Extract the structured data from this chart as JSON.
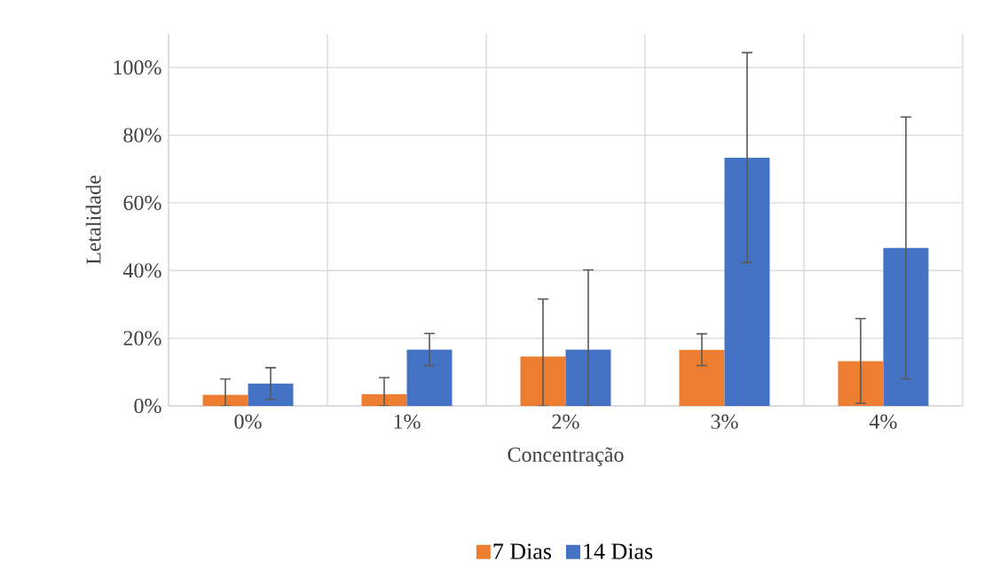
{
  "chart_data": {
    "type": "bar",
    "xlabel": "Concentração",
    "ylabel": "Letalidade",
    "categories": [
      "0%",
      "1%",
      "2%",
      "3%",
      "4%"
    ],
    "series": [
      {
        "name": "7 Dias",
        "color": "#ed7d31",
        "values": [
          3.3,
          3.5,
          14.6,
          16.6,
          13.2
        ],
        "errors": [
          [
            0,
            8.0
          ],
          [
            0,
            8.4
          ],
          [
            0,
            31.6
          ],
          [
            11.9,
            21.3
          ],
          [
            0.8,
            25.8
          ]
        ]
      },
      {
        "name": "14 Dias",
        "color": "#4472c4",
        "values": [
          6.6,
          16.6,
          16.6,
          73.4,
          46.7
        ],
        "errors": [
          [
            1.9,
            11.3
          ],
          [
            11.9,
            21.4
          ],
          [
            0,
            40.2
          ],
          [
            42.4,
            104.4
          ],
          [
            8.0,
            85.4
          ]
        ]
      }
    ],
    "ylim": [
      0,
      110
    ],
    "yticks": [
      {
        "value": 0,
        "label": "0%"
      },
      {
        "value": 20,
        "label": "20%"
      },
      {
        "value": 40,
        "label": "40%"
      },
      {
        "value": 60,
        "label": "60%"
      },
      {
        "value": 80,
        "label": "80%"
      },
      {
        "value": 100,
        "label": "100%"
      }
    ],
    "grid": true,
    "legend": "bottom"
  }
}
